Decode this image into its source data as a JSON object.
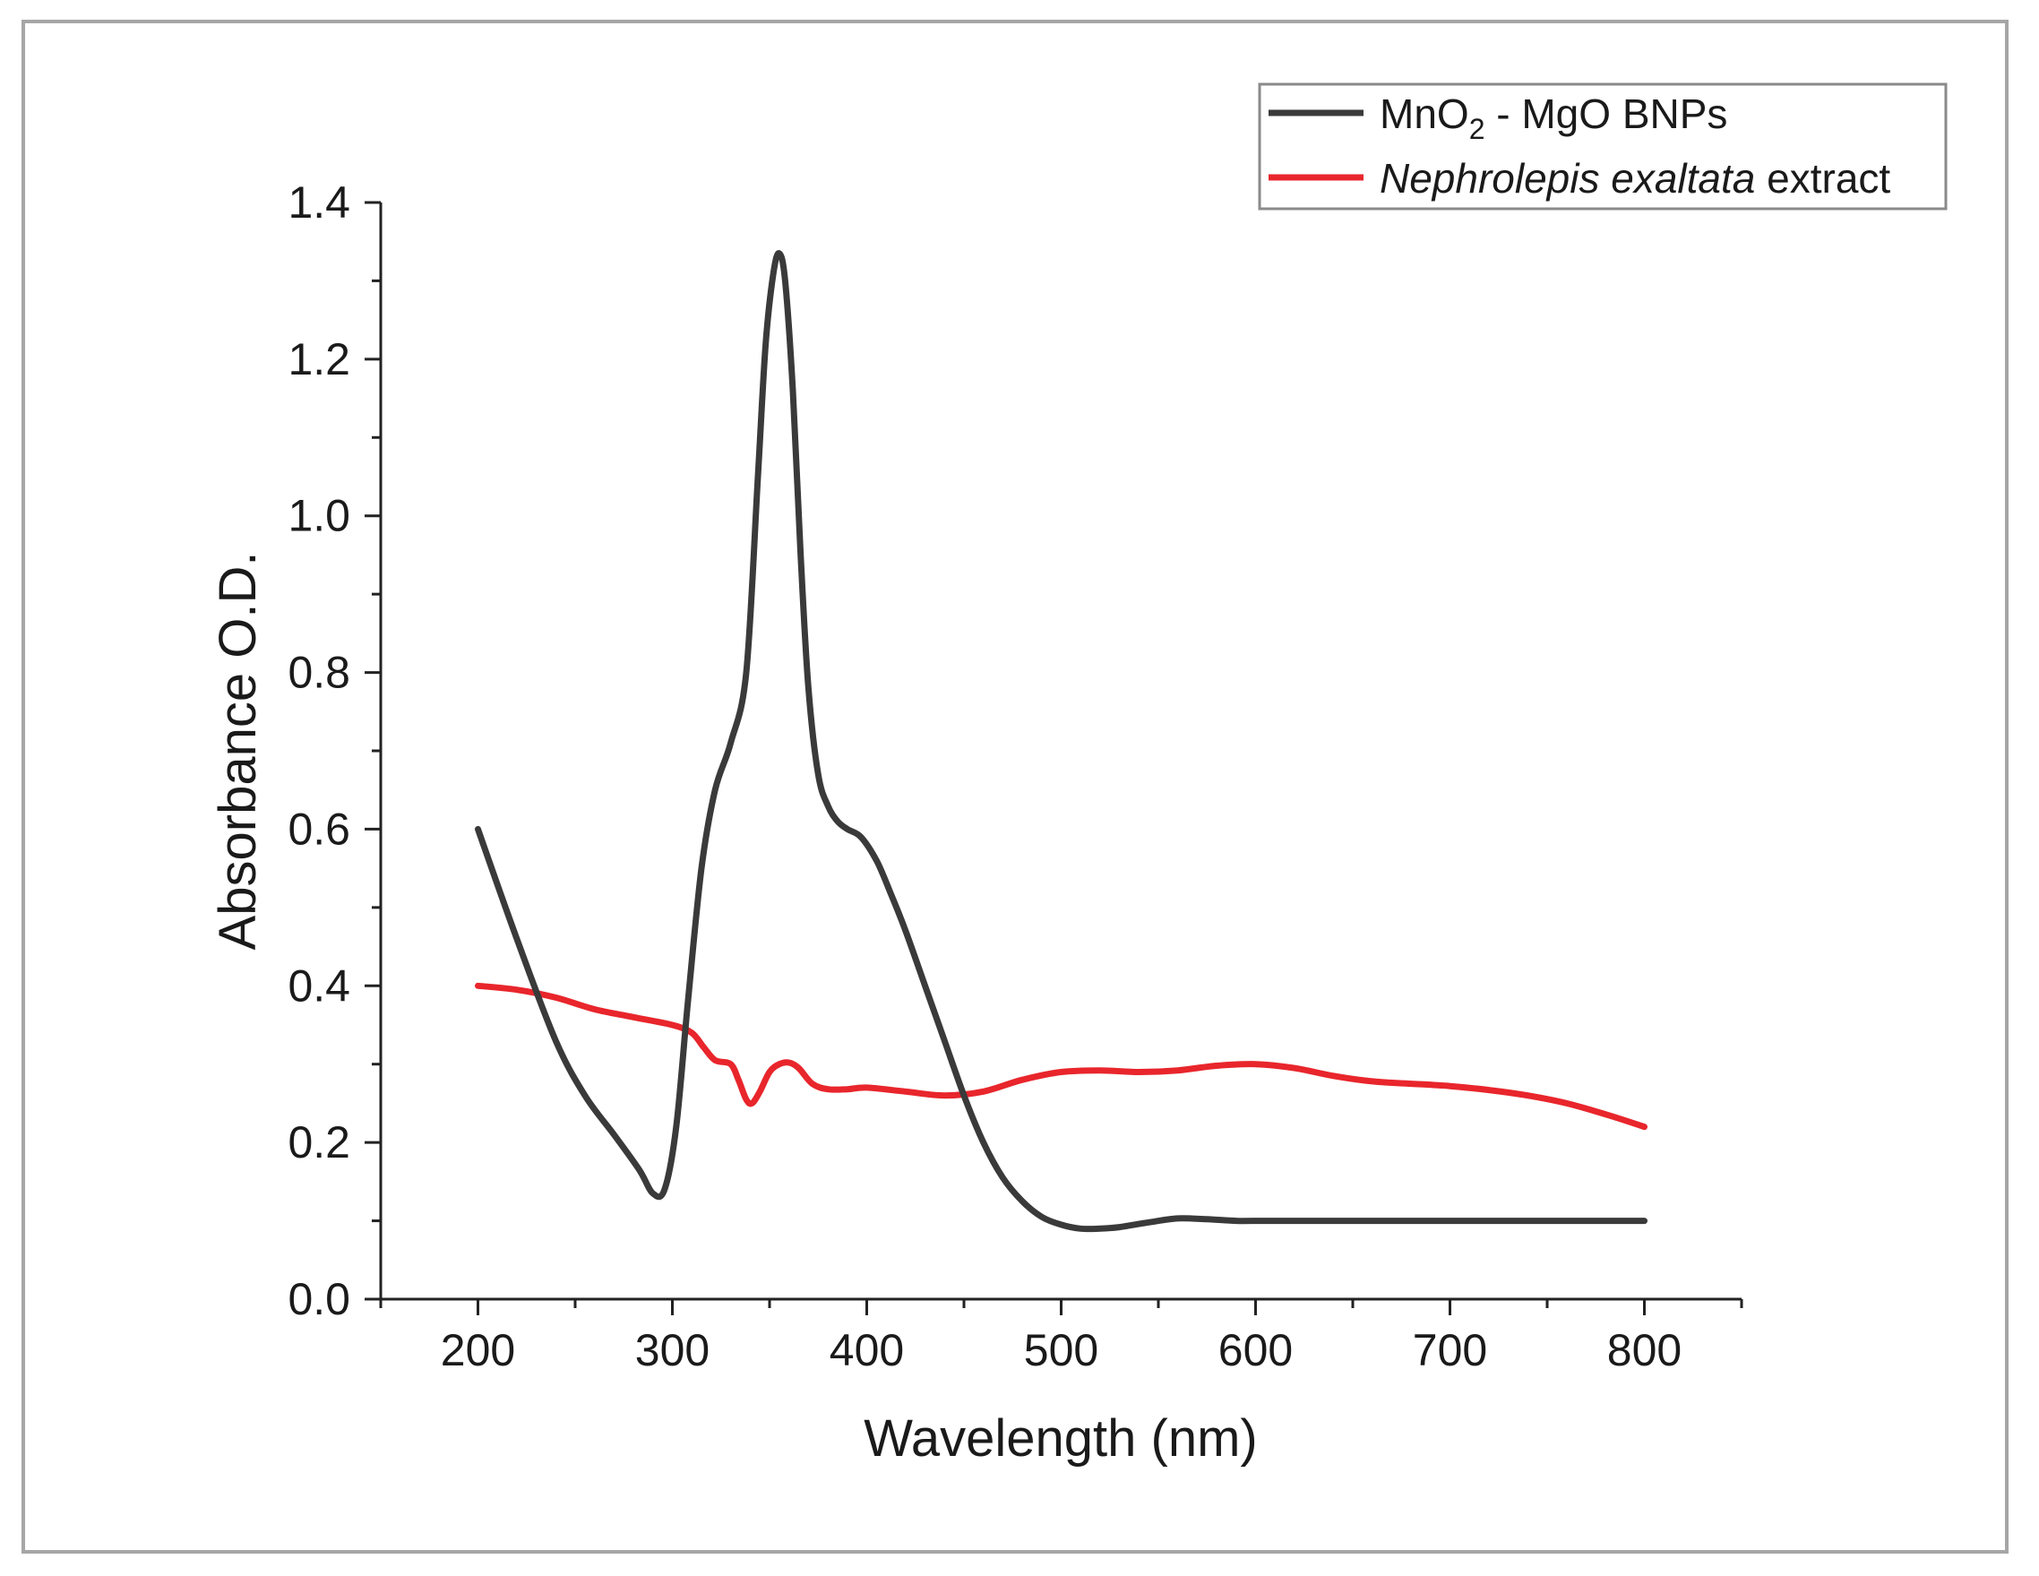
{
  "chart_data": {
    "type": "line",
    "title": "",
    "xlabel": "Wavelength (nm)",
    "ylabel": "Absorbance O.D.",
    "xlim": [
      150,
      850
    ],
    "ylim": [
      0.0,
      1.4
    ],
    "xticks": [
      200,
      300,
      400,
      500,
      600,
      700,
      800
    ],
    "xtick_labels": [
      "200",
      "300",
      "400",
      "500",
      "600",
      "700",
      "800"
    ],
    "yticks": [
      0.0,
      0.2,
      0.4,
      0.6,
      0.8,
      1.0,
      1.2,
      1.4
    ],
    "ytick_labels": [
      "0.0",
      "0.2",
      "0.4",
      "0.6",
      "0.8",
      "1.0",
      "1.2",
      "1.4"
    ],
    "grid": false,
    "legend_position": "top-right",
    "series": [
      {
        "name": "MnO2 - MgO BNPs",
        "label_main": "MnO",
        "label_sub": "2",
        "label_rest": " - MgO BNPs",
        "color": "#3a3a3a",
        "x": [
          200,
          220,
          240,
          255,
          270,
          283,
          290,
          296,
          302,
          308,
          315,
          322,
          330,
          338,
          344,
          348,
          352,
          355,
          358,
          362,
          366,
          370,
          375,
          380,
          385,
          390,
          397,
          405,
          412,
          420,
          430,
          440,
          450,
          460,
          470,
          480,
          490,
          500,
          510,
          520,
          530,
          545,
          560,
          575,
          590,
          600,
          650,
          700,
          750,
          800
        ],
        "y": [
          0.6,
          0.46,
          0.33,
          0.26,
          0.21,
          0.165,
          0.135,
          0.14,
          0.22,
          0.38,
          0.55,
          0.65,
          0.71,
          0.8,
          1.05,
          1.22,
          1.31,
          1.335,
          1.3,
          1.16,
          0.95,
          0.78,
          0.67,
          0.63,
          0.61,
          0.6,
          0.59,
          0.56,
          0.52,
          0.47,
          0.4,
          0.33,
          0.26,
          0.2,
          0.155,
          0.125,
          0.105,
          0.095,
          0.09,
          0.09,
          0.092,
          0.098,
          0.103,
          0.102,
          0.1,
          0.1,
          0.1,
          0.1,
          0.1,
          0.1
        ]
      },
      {
        "name": "Nephrolepis exaltata extract",
        "label_italic": "Nephrolepis exaltata",
        "label_rest": " extract",
        "color": "#e8262c",
        "x": [
          200,
          220,
          240,
          260,
          280,
          300,
          310,
          316,
          322,
          330,
          334,
          338,
          341,
          345,
          350,
          355,
          360,
          365,
          372,
          380,
          390,
          400,
          420,
          440,
          460,
          480,
          500,
          520,
          540,
          560,
          580,
          600,
          620,
          640,
          660,
          680,
          700,
          720,
          740,
          760,
          780,
          800
        ],
        "y": [
          0.4,
          0.395,
          0.385,
          0.37,
          0.36,
          0.35,
          0.34,
          0.322,
          0.305,
          0.3,
          0.28,
          0.255,
          0.25,
          0.265,
          0.29,
          0.3,
          0.302,
          0.295,
          0.275,
          0.268,
          0.268,
          0.27,
          0.265,
          0.26,
          0.265,
          0.28,
          0.29,
          0.292,
          0.29,
          0.292,
          0.298,
          0.3,
          0.295,
          0.285,
          0.278,
          0.275,
          0.272,
          0.267,
          0.26,
          0.25,
          0.236,
          0.22
        ]
      }
    ]
  }
}
